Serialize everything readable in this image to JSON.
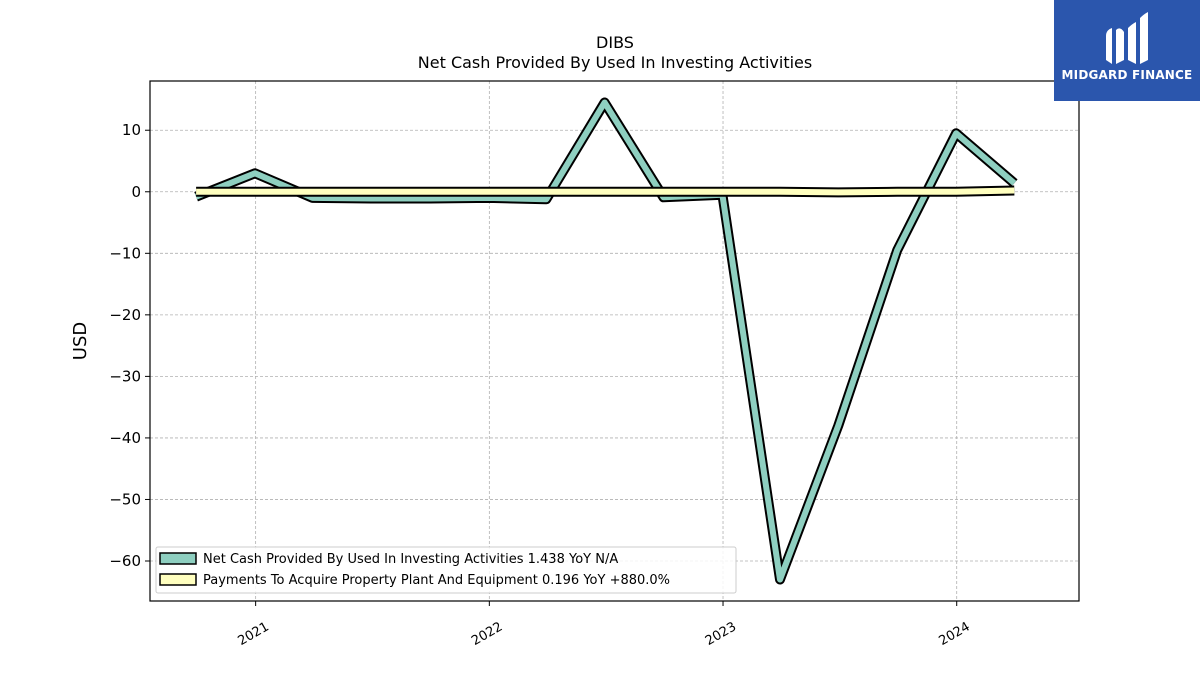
{
  "chart_data": {
    "type": "line",
    "title": "DIBS",
    "subtitle": "Net Cash Provided By Used In Investing Activities",
    "xlabel": "",
    "ylabel": "USD",
    "xlim": [
      "2020-07-20",
      "2024-07-10"
    ],
    "ylim": [
      -66.5,
      18
    ],
    "yticks": [
      10,
      0,
      -10,
      -20,
      -30,
      -40,
      -50,
      -60
    ],
    "ytick_labels": [
      "10",
      "0",
      "−10",
      "−20",
      "−30",
      "−40",
      "−50",
      "−60"
    ],
    "xticks": [
      "2021-01-01",
      "2022-01-01",
      "2023-01-01",
      "2024-01-01"
    ],
    "xtick_labels": [
      "2021",
      "2022",
      "2023",
      "2024"
    ],
    "grid": true,
    "legend_position": "lower-left",
    "series": [
      {
        "name": "Net Cash Provided By Used In Investing Activities  1.438 YoY N/A",
        "color": "#8ecfc0",
        "x": [
          "2020-09-30",
          "2020-12-31",
          "2021-03-31",
          "2021-06-30",
          "2021-09-30",
          "2021-12-31",
          "2022-03-31",
          "2022-06-30",
          "2022-09-30",
          "2022-12-31",
          "2023-03-31",
          "2023-06-30",
          "2023-09-30",
          "2023-12-31",
          "2024-03-31"
        ],
        "values": [
          -0.8,
          3.0,
          -1.0,
          -1.1,
          -1.1,
          -1.0,
          -1.2,
          14.5,
          -0.9,
          -0.5,
          -63.0,
          -38.0,
          -9.5,
          9.5,
          1.4
        ]
      },
      {
        "name": "Payments To Acquire Property Plant And Equipment  0.196 YoY +880.0%",
        "color": "#ffffbf",
        "x": [
          "2020-09-30",
          "2020-12-31",
          "2021-03-31",
          "2021-06-30",
          "2021-09-30",
          "2021-12-31",
          "2022-03-31",
          "2022-06-30",
          "2022-09-30",
          "2022-12-31",
          "2023-03-31",
          "2023-06-30",
          "2023-09-30",
          "2023-12-31",
          "2024-03-31"
        ],
        "values": [
          0.0,
          0.0,
          0.0,
          0.0,
          0.0,
          0.0,
          0.0,
          0.0,
          0.0,
          0.0,
          0.0,
          -0.1,
          0.0,
          0.0,
          0.2
        ]
      }
    ]
  },
  "brand": {
    "name": "MIDGARD FINANCE",
    "bg_color": "#2b56ad"
  }
}
